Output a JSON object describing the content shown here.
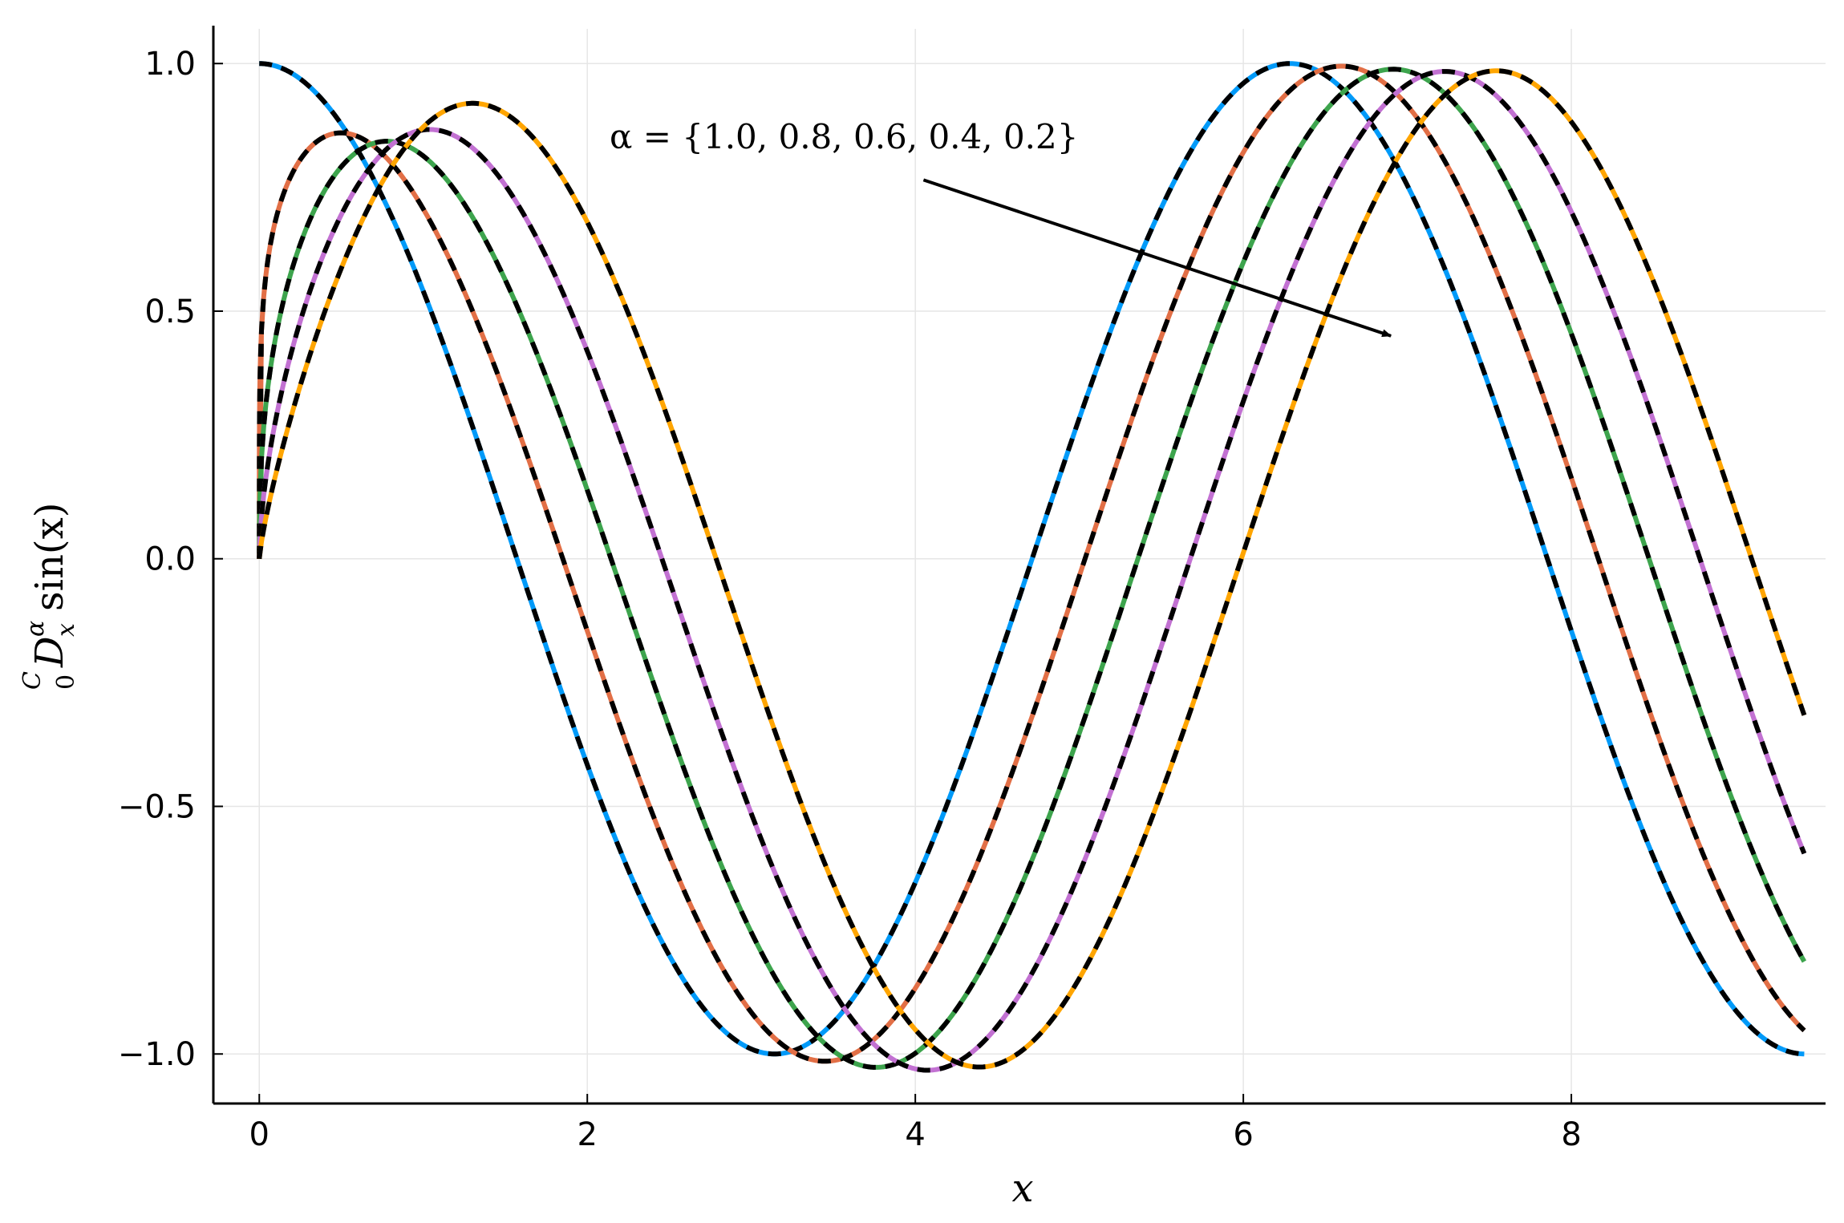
{
  "chart_data": {
    "type": "line",
    "title": "",
    "xlabel": "x",
    "ylabel": {
      "sup": "C",
      "sub": "0",
      "operator": "D",
      "operator_sup": "α",
      "operator_sub": "x",
      "function": "sin(x)"
    },
    "xlim": [
      -0.28,
      9.55
    ],
    "ylim": [
      -1.1,
      1.07
    ],
    "xticks": [
      0,
      2,
      4,
      6,
      8
    ],
    "xtick_labels": [
      "0",
      "2",
      "4",
      "6",
      "8"
    ],
    "yticks": [
      -1.0,
      -0.5,
      0.0,
      0.5,
      1.0
    ],
    "ytick_labels": [
      "−1.0",
      "−0.5",
      "0.0",
      "0.5",
      "1.0"
    ],
    "grid": true,
    "legend": "none",
    "annotation": {
      "text": "α = {1.0,  0.8,  0.6,  0.4,  0.2}",
      "arrow_from": [
        4.05,
        0.765
      ],
      "arrow_to": [
        6.9,
        0.45
      ]
    },
    "x_range": [
      0,
      9.42
    ],
    "series": [
      {
        "alpha": 1.0,
        "color": "#009af9",
        "peaks": [
          [
            0,
            1.0
          ],
          [
            6.28,
            1.0
          ]
        ],
        "troughs": [
          [
            3.14,
            -1.0
          ]
        ],
        "end": [
          9.42,
          -1.0
        ]
      },
      {
        "alpha": 0.8,
        "color": "#e26f46",
        "peaks": [
          [
            0.52,
            0.86
          ],
          [
            6.6,
            0.99
          ]
        ],
        "troughs": [
          [
            3.5,
            -1.02
          ]
        ],
        "end": [
          9.42,
          -0.95
        ]
      },
      {
        "alpha": 0.6,
        "color": "#3da44d",
        "peaks": [
          [
            0.75,
            0.84
          ],
          [
            6.92,
            0.99
          ]
        ],
        "troughs": [
          [
            3.75,
            -1.03
          ]
        ],
        "end": [
          9.42,
          -0.82
        ]
      },
      {
        "alpha": 0.4,
        "color": "#c271d2",
        "peaks": [
          [
            1.0,
            0.87
          ],
          [
            7.23,
            0.98
          ]
        ],
        "troughs": [
          [
            4.07,
            -1.04
          ]
        ],
        "end": [
          9.42,
          -0.6
        ]
      },
      {
        "alpha": 0.2,
        "color": "#ffa500",
        "peaks": [
          [
            1.3,
            0.92
          ],
          [
            7.55,
            0.98
          ]
        ],
        "troughs": [
          [
            4.38,
            -1.03
          ]
        ],
        "end": [
          9.42,
          -0.32
        ]
      }
    ],
    "overlay_color": "#000000",
    "overlay_style": "dashed"
  }
}
